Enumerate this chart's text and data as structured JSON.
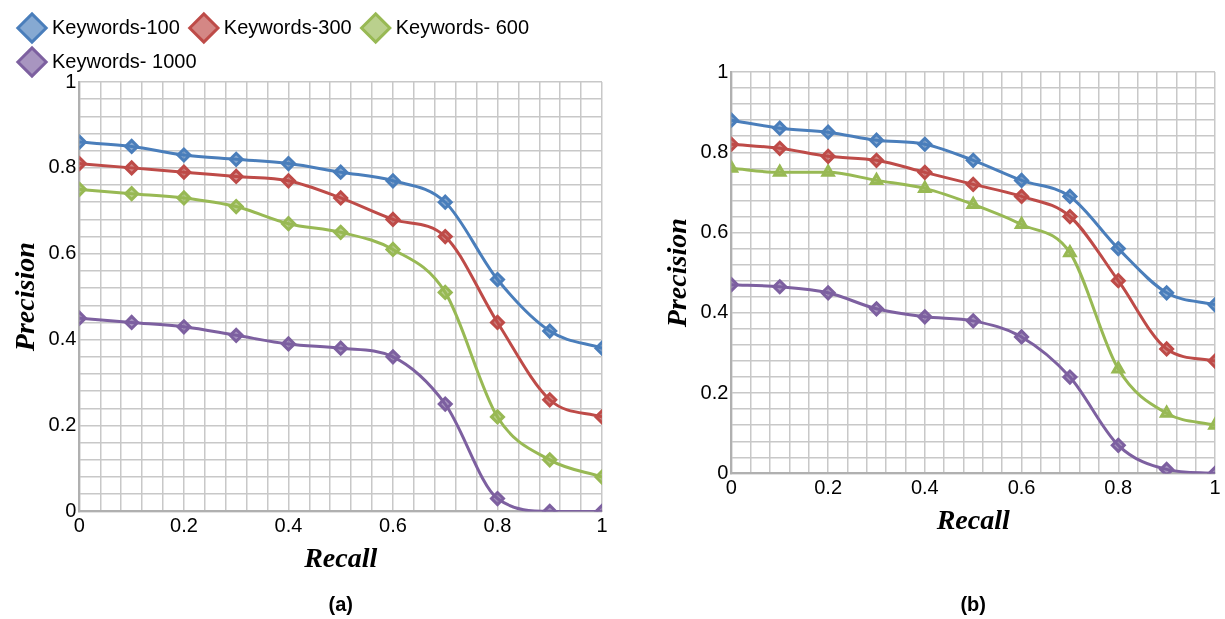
{
  "chart_data": [
    {
      "type": "line",
      "xlabel": "Recall",
      "ylabel": "Precision",
      "annotations": [
        "(a)"
      ],
      "legend": "top left",
      "grid": true,
      "marker": "diamond",
      "line_style": "solid",
      "x": [
        0,
        0.1,
        0.2,
        0.3,
        0.4,
        0.5,
        0.6,
        0.7,
        0.8,
        0.9,
        1
      ],
      "xlim": [
        0,
        1
      ],
      "ylim": [
        0,
        1
      ],
      "xticks": [
        0,
        {
          "value": 0.04,
          "label": null
        },
        {
          "value": 0.08,
          "label": null
        },
        {
          "value": 0.12,
          "label": null
        },
        {
          "value": 0.16,
          "label": null
        },
        0.2,
        {
          "value": 0.24,
          "label": null
        },
        {
          "value": 0.28,
          "label": null
        },
        {
          "value": 0.32,
          "label": null
        },
        {
          "value": 0.36,
          "label": null
        },
        0.4,
        {
          "value": 0.44,
          "label": null
        },
        {
          "value": 0.48,
          "label": null
        },
        {
          "value": 0.52,
          "label": null
        },
        {
          "value": 0.56,
          "label": null
        },
        0.6,
        {
          "value": 0.64,
          "label": null
        },
        {
          "value": 0.68,
          "label": null
        },
        {
          "value": 0.72,
          "label": null
        },
        {
          "value": 0.76,
          "label": null
        },
        0.8,
        {
          "value": 0.84,
          "label": null
        },
        {
          "value": 0.88,
          "label": null
        },
        {
          "value": 0.92,
          "label": null
        },
        {
          "value": 0.96,
          "label": null
        },
        1
      ],
      "yticks": [
        0,
        {
          "value": 0.04,
          "label": null
        },
        {
          "value": 0.08,
          "label": null
        },
        {
          "value": 0.12,
          "label": null
        },
        {
          "value": 0.16,
          "label": null
        },
        0.2,
        {
          "value": 0.24,
          "label": null
        },
        {
          "value": 0.28,
          "label": null
        },
        {
          "value": 0.32,
          "label": null
        },
        {
          "value": 0.36,
          "label": null
        },
        0.4,
        {
          "value": 0.44,
          "label": null
        },
        {
          "value": 0.48,
          "label": null
        },
        {
          "value": 0.52,
          "label": null
        },
        {
          "value": 0.56,
          "label": null
        },
        0.6,
        {
          "value": 0.64,
          "label": null
        },
        {
          "value": 0.68,
          "label": null
        },
        {
          "value": 0.72,
          "label": null
        },
        {
          "value": 0.76,
          "label": null
        },
        0.8,
        {
          "value": 0.84,
          "label": null
        },
        {
          "value": 0.88,
          "label": null
        },
        {
          "value": 0.92,
          "label": null
        },
        {
          "value": 0.96,
          "label": null
        },
        1
      ],
      "series": [
        {
          "name": "Keywords-100",
          "color": "#4a7ebb",
          "values": [
            0.86,
            0.85,
            0.83,
            0.82,
            0.81,
            0.79,
            0.77,
            0.72,
            0.54,
            0.42,
            0.38
          ]
        },
        {
          "name": "Keywords-300",
          "color": "#be4b48",
          "values": [
            0.81,
            0.8,
            0.79,
            0.78,
            0.77,
            0.73,
            0.68,
            0.64,
            0.44,
            0.26,
            0.22
          ]
        },
        {
          "name": "Keywords- 600",
          "color": "#98b954",
          "values": [
            0.75,
            0.74,
            0.73,
            0.71,
            0.67,
            0.65,
            0.61,
            0.51,
            0.22,
            0.12,
            0.08
          ]
        },
        {
          "name": "Keywords- 1000",
          "color": "#7d60a0",
          "values": [
            0.45,
            0.44,
            0.43,
            0.41,
            0.39,
            0.38,
            0.36,
            0.25,
            0.03,
            0,
            0
          ]
        }
      ]
    },
    {
      "type": "line",
      "xlabel": "Recall",
      "ylabel": "Precision",
      "annotations": [
        "(b)"
      ],
      "grid": true,
      "marker": "diamond",
      "line_style": "solid",
      "x": [
        0,
        0.1,
        0.2,
        0.3,
        0.4,
        0.5,
        0.6,
        0.7,
        0.8,
        0.9,
        1
      ],
      "xlim": [
        0,
        1
      ],
      "ylim": [
        0,
        1
      ],
      "xticks": [
        0,
        {
          "value": 0.04,
          "label": null
        },
        {
          "value": 0.08,
          "label": null
        },
        {
          "value": 0.12,
          "label": null
        },
        {
          "value": 0.16,
          "label": null
        },
        0.2,
        {
          "value": 0.24,
          "label": null
        },
        {
          "value": 0.28,
          "label": null
        },
        {
          "value": 0.32,
          "label": null
        },
        {
          "value": 0.36,
          "label": null
        },
        0.4,
        {
          "value": 0.44,
          "label": null
        },
        {
          "value": 0.48,
          "label": null
        },
        {
          "value": 0.52,
          "label": null
        },
        {
          "value": 0.56,
          "label": null
        },
        0.6,
        {
          "value": 0.64,
          "label": null
        },
        {
          "value": 0.68,
          "label": null
        },
        {
          "value": 0.72,
          "label": null
        },
        {
          "value": 0.76,
          "label": null
        },
        0.8,
        {
          "value": 0.84,
          "label": null
        },
        {
          "value": 0.88,
          "label": null
        },
        {
          "value": 0.92,
          "label": null
        },
        {
          "value": 0.96,
          "label": null
        },
        1
      ],
      "yticks": [
        0,
        {
          "value": 0.04,
          "label": null
        },
        {
          "value": 0.08,
          "label": null
        },
        {
          "value": 0.12,
          "label": null
        },
        {
          "value": 0.16,
          "label": null
        },
        0.2,
        {
          "value": 0.24,
          "label": null
        },
        {
          "value": 0.28,
          "label": null
        },
        {
          "value": 0.32,
          "label": null
        },
        {
          "value": 0.36,
          "label": null
        },
        0.4,
        {
          "value": 0.44,
          "label": null
        },
        {
          "value": 0.48,
          "label": null
        },
        {
          "value": 0.52,
          "label": null
        },
        {
          "value": 0.56,
          "label": null
        },
        0.6,
        {
          "value": 0.64,
          "label": null
        },
        {
          "value": 0.68,
          "label": null
        },
        {
          "value": 0.72,
          "label": null
        },
        {
          "value": 0.76,
          "label": null
        },
        0.8,
        {
          "value": 0.84,
          "label": null
        },
        {
          "value": 0.88,
          "label": null
        },
        {
          "value": 0.92,
          "label": null
        },
        {
          "value": 0.96,
          "label": null
        },
        1
      ],
      "series": [
        {
          "color": "#4a7ebb",
          "values": [
            0.88,
            0.86,
            0.85,
            0.83,
            0.82,
            0.78,
            0.73,
            0.69,
            0.56,
            0.45,
            0.42
          ]
        },
        {
          "color": "#be4b48",
          "values": [
            0.82,
            0.81,
            0.79,
            0.78,
            0.75,
            0.72,
            0.69,
            0.64,
            0.48,
            0.31,
            0.28
          ]
        },
        {
          "color": "#98b954",
          "marker": "triangle",
          "values": [
            0.76,
            0.75,
            0.75,
            0.73,
            0.71,
            0.67,
            0.62,
            0.55,
            0.26,
            0.15,
            0.12
          ]
        },
        {
          "color": "#7d60a0",
          "values": [
            0.47,
            0.465,
            0.45,
            0.41,
            0.39,
            0.38,
            0.34,
            0.24,
            0.07,
            0.01,
            0
          ]
        }
      ]
    }
  ]
}
